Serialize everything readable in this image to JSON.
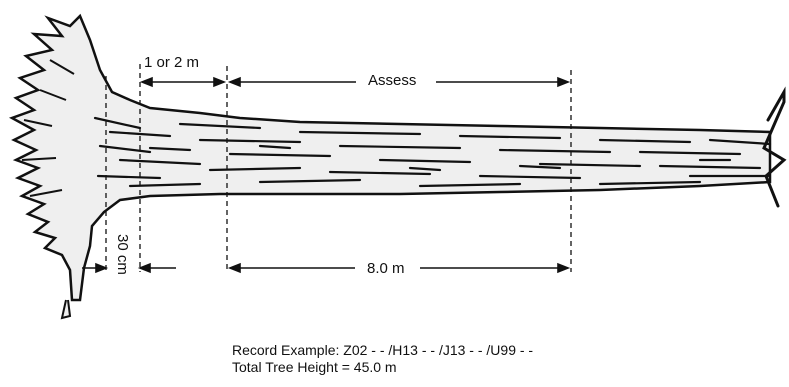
{
  "dimension_labels": {
    "stump_height": "30 cm",
    "skip_length": "1 or 2 m",
    "assess_zone": "Assess",
    "assess_length": "8.0 m"
  },
  "record": {
    "example": "Record Example:  Z02 - - /H13 - - /J13 - - /U99 - -",
    "total_height": "Total Tree Height = 45.0 m"
  }
}
